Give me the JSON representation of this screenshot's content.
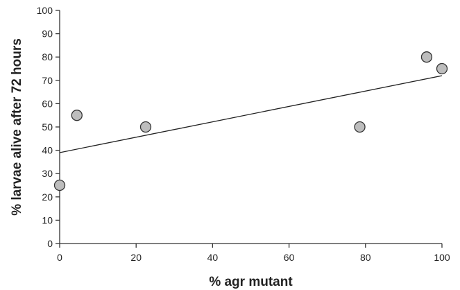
{
  "chart_data": {
    "type": "scatter",
    "title": "",
    "xlabel": "% agr mutant",
    "ylabel": "% larvae alive after 72 hours",
    "xlim": [
      0,
      100
    ],
    "ylim": [
      0,
      100
    ],
    "xticks": [
      0,
      20,
      40,
      60,
      80,
      100
    ],
    "yticks": [
      0,
      10,
      20,
      30,
      40,
      50,
      60,
      70,
      80,
      90,
      100
    ],
    "grid": false,
    "legend": "none",
    "series": [
      {
        "x": [
          0,
          4.5,
          22.5,
          78.5,
          96,
          100
        ],
        "y": [
          25,
          55,
          50,
          50,
          80,
          75
        ],
        "color": "#bdbdbd"
      }
    ],
    "trendline": {
      "type": "linear",
      "x": [
        0,
        100
      ],
      "y": [
        39,
        72
      ]
    }
  }
}
